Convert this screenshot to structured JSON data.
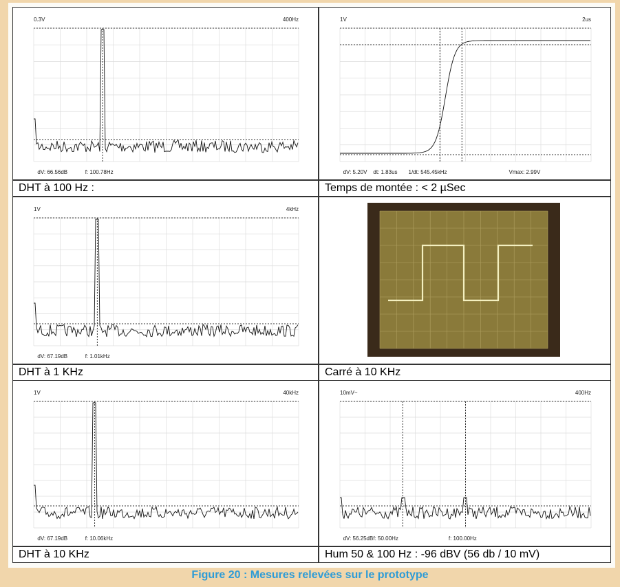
{
  "panels": [
    {
      "top_left": "0.3V",
      "top_right": "400Hz",
      "readouts": [
        "dV: 66.56dB",
        "f: 100.78Hz"
      ],
      "caption": "DHT à 100 Hz :"
    },
    {
      "top_left": "1V",
      "top_right": "2us",
      "readouts": [
        "dV: 5.20V",
        "dt: 1.83us",
        "1/dt: 545.45kHz",
        "Vmax: 2.99V"
      ],
      "caption": "Temps de montée : < 2 µSec"
    },
    {
      "top_left": "1V",
      "top_right": "4kHz",
      "readouts": [
        "dV: 67.19dB",
        "f: 1.01kHz"
      ],
      "caption": "DHT à 1 KHz"
    },
    {
      "caption": "Carré à 10 KHz"
    },
    {
      "top_left": "1V",
      "top_right": "40kHz",
      "readouts": [
        "dV: 67.19dB",
        "f: 10.06kHz"
      ],
      "caption": "DHT à 10 KHz"
    },
    {
      "top_left": "10mV~",
      "top_right": "400Hz",
      "readouts": [
        "dV: 56.25dB",
        "f: 50.00Hz",
        "f: 100.00Hz"
      ],
      "caption": "Hum 50 & 100 Hz : -96 dBV (56 db / 10 mV)"
    }
  ],
  "figure_caption": "Figure 20 : Mesures relevées sur le prototype"
}
